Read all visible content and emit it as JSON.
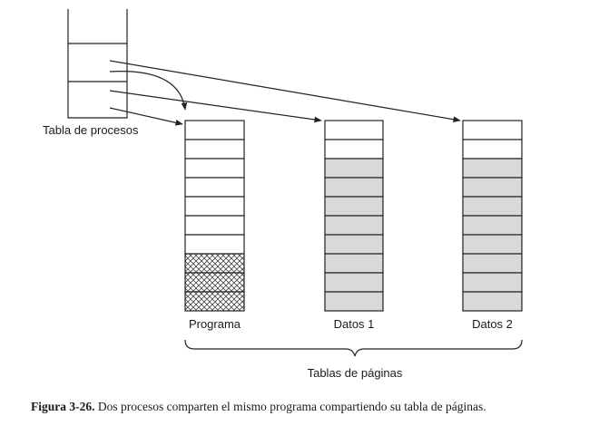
{
  "process_table": {
    "label": "Tabla de procesos"
  },
  "page_tables": [
    {
      "label": "Datos 1",
      "cells": [
        "empty",
        "empty",
        "shared",
        "shared",
        "shared",
        "shared",
        "shared",
        "shared",
        "shared",
        "shared"
      ]
    },
    {
      "label": "Programa",
      "cells": [
        "empty",
        "empty",
        "empty",
        "empty",
        "empty",
        "empty",
        "empty",
        "hatched",
        "hatched",
        "hatched"
      ]
    },
    {
      "label": "Datos 2",
      "cells": [
        "empty",
        "empty",
        "shared",
        "shared",
        "shared",
        "shared",
        "shared",
        "shared",
        "shared",
        "shared"
      ]
    }
  ],
  "group_label": "Tablas de páginas",
  "caption": {
    "label": "Figura 3-26.",
    "text": "Dos procesos comparten el mismo programa compartiendo su tabla de páginas."
  },
  "colors": {
    "line": "#222222",
    "shared_fill": "#d9d9d9",
    "hatch": "#444444"
  }
}
